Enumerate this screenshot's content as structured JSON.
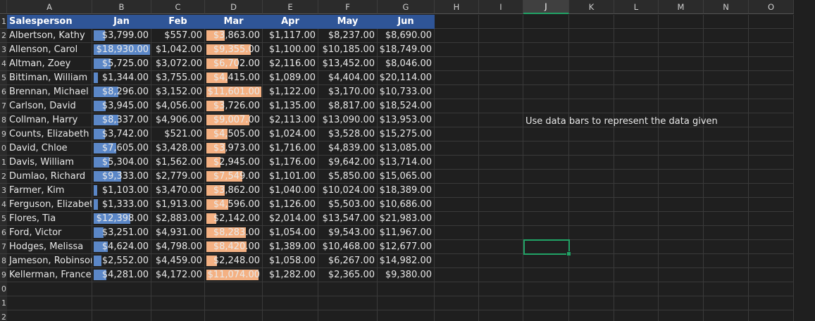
{
  "columns": [
    "A",
    "B",
    "C",
    "D",
    "E",
    "F",
    "G",
    "H",
    "I",
    "J",
    "K",
    "L",
    "M",
    "N",
    "O"
  ],
  "selected_column": "J",
  "row_numbers": [
    "",
    "1",
    "2",
    "3",
    "4",
    "5",
    "6",
    "7",
    "8",
    "9",
    "0",
    "1",
    "2",
    "3",
    "4",
    "5",
    "6",
    "7",
    "8",
    "9",
    "0",
    "1",
    "2"
  ],
  "header": [
    "Salesperson",
    "Jan",
    "Feb",
    "Mar",
    "Apr",
    "May",
    "Jun"
  ],
  "rows": [
    [
      "Albertson, Kathy",
      "$3,799.00",
      "$557.00",
      "$3,863.00",
      "$1,117.00",
      "$8,237.00",
      "$8,690.00"
    ],
    [
      "Allenson, Carol",
      "$18,930.00",
      "$1,042.00",
      "$9,355.00",
      "$1,100.00",
      "$10,185.00",
      "$18,749.00"
    ],
    [
      "Altman, Zoey",
      "$5,725.00",
      "$3,072.00",
      "$6,702.00",
      "$2,116.00",
      "$13,452.00",
      "$8,046.00"
    ],
    [
      "Bittiman, William",
      "$1,344.00",
      "$3,755.00",
      "$4,415.00",
      "$1,089.00",
      "$4,404.00",
      "$20,114.00"
    ],
    [
      "Brennan, Michael",
      "$8,296.00",
      "$3,152.00",
      "$11,601.00",
      "$1,122.00",
      "$3,170.00",
      "$10,733.00"
    ],
    [
      "Carlson, David",
      "$3,945.00",
      "$4,056.00",
      "$3,726.00",
      "$1,135.00",
      "$8,817.00",
      "$18,524.00"
    ],
    [
      "Collman, Harry",
      "$8,337.00",
      "$4,906.00",
      "$9,007.00",
      "$2,113.00",
      "$13,090.00",
      "$13,953.00"
    ],
    [
      "Counts, Elizabeth",
      "$3,742.00",
      "$521.00",
      "$4,505.00",
      "$1,024.00",
      "$3,528.00",
      "$15,275.00"
    ],
    [
      "David, Chloe",
      "$7,605.00",
      "$3,428.00",
      "$3,973.00",
      "$1,716.00",
      "$4,839.00",
      "$13,085.00"
    ],
    [
      "Davis, William",
      "$5,304.00",
      "$1,562.00",
      "$2,945.00",
      "$1,176.00",
      "$9,642.00",
      "$13,714.00"
    ],
    [
      "Dumlao, Richard",
      "$9,333.00",
      "$2,779.00",
      "$7,549.00",
      "$1,101.00",
      "$5,850.00",
      "$15,065.00"
    ],
    [
      "Farmer, Kim",
      "$1,103.00",
      "$3,470.00",
      "$3,862.00",
      "$1,040.00",
      "$10,024.00",
      "$18,389.00"
    ],
    [
      "Ferguson, Elizabeth",
      "$1,333.00",
      "$1,913.00",
      "$4,596.00",
      "$1,126.00",
      "$5,503.00",
      "$10,686.00"
    ],
    [
      "Flores, Tia",
      "$12,398.00",
      "$2,883.00",
      "$2,142.00",
      "$2,014.00",
      "$13,547.00",
      "$21,983.00"
    ],
    [
      "Ford, Victor",
      "$3,251.00",
      "$4,931.00",
      "$8,283.00",
      "$1,054.00",
      "$9,543.00",
      "$11,967.00"
    ],
    [
      "Hodges, Melissa",
      "$4,624.00",
      "$4,798.00",
      "$8,420.00",
      "$1,389.00",
      "$10,468.00",
      "$12,677.00"
    ],
    [
      "Jameson, Robinson",
      "$2,552.00",
      "$4,459.00",
      "$2,248.00",
      "$1,058.00",
      "$6,267.00",
      "$14,982.00"
    ],
    [
      "Kellerman, Frances",
      "$4,281.00",
      "$4,172.00",
      "$11,074.00",
      "$1,282.00",
      "$2,365.00",
      "$9,380.00"
    ]
  ],
  "databar_jan_color": "#5b87c7",
  "databar_mar_color": "#f4b183",
  "note": "Use data bars to represent the data given",
  "grid_color": "#3a3a3a",
  "header_fill_color": "#2f5597",
  "selection_color": "#21a366"
}
